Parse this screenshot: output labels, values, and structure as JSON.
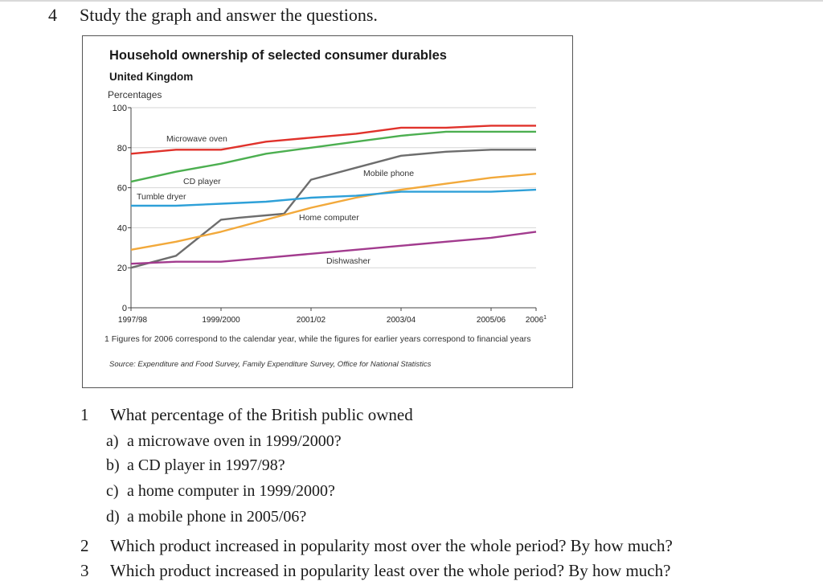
{
  "task": {
    "number": "4",
    "heading": "Study the graph and answer the questions."
  },
  "figure": {
    "title": "Household ownership of selected consumer durables",
    "subtitle": "United Kingdom",
    "unit_label": "Percentages",
    "footnote": "1 Figures for 2006 correspond to the calendar year, while the figures for earlier years correspond to financial years",
    "source": "Source: Expenditure and Food Survey, Family Expenditure Survey, Office for National Statistics"
  },
  "chart_data": {
    "type": "line",
    "title": "Household ownership of selected consumer durables",
    "subtitle": "United Kingdom",
    "ylabel": "Percentages",
    "xlabel": "",
    "ylim": [
      0,
      100
    ],
    "yticks": [
      0,
      20,
      40,
      60,
      80,
      100
    ],
    "xlim": [
      0,
      9
    ],
    "xticks": [
      {
        "x": 0,
        "label": "1997/98"
      },
      {
        "x": 2,
        "label": "1999/2000"
      },
      {
        "x": 4,
        "label": "2001/02"
      },
      {
        "x": 6,
        "label": "2003/04"
      },
      {
        "x": 8,
        "label": "2005/06"
      },
      {
        "x": 9,
        "label": "2006",
        "sup": "1"
      }
    ],
    "grid": true,
    "series": [
      {
        "name": "Microwave oven",
        "color": "#e0322b",
        "x": [
          0,
          1,
          2,
          3,
          4,
          5,
          6,
          7,
          8,
          9
        ],
        "values": [
          77,
          79,
          79,
          83,
          85,
          87,
          90,
          90,
          91,
          91
        ]
      },
      {
        "name": "CD player",
        "color": "#4caf50",
        "x": [
          0,
          1,
          2,
          3,
          4,
          5,
          6,
          7,
          8,
          9
        ],
        "values": [
          63,
          68,
          72,
          77,
          80,
          83,
          86,
          88,
          88,
          88
        ]
      },
      {
        "name": "Mobile phone",
        "color": "#6d6d6d",
        "x": [
          0,
          1,
          2,
          2.4,
          3.4,
          4,
          5,
          6,
          7,
          8,
          9
        ],
        "values": [
          20,
          26,
          44,
          45,
          47,
          64,
          70,
          76,
          78,
          79,
          79
        ]
      },
      {
        "name": "Home computer",
        "color": "#f2a93b",
        "x": [
          0,
          1,
          2,
          3,
          4,
          5,
          6,
          7,
          8,
          9
        ],
        "values": [
          29,
          33,
          38,
          44,
          50,
          55,
          59,
          62,
          65,
          67
        ]
      },
      {
        "name": "Tumble dryer",
        "color": "#2ea0d8",
        "x": [
          0,
          1,
          2,
          3,
          4,
          5,
          6,
          7,
          8,
          9
        ],
        "values": [
          51,
          51,
          52,
          53,
          55,
          56,
          58,
          58,
          58,
          59
        ]
      },
      {
        "name": "Dishwasher",
        "color": "#a23b8e",
        "x": [
          0,
          1,
          2,
          3,
          4,
          5,
          6,
          7,
          8,
          9
        ],
        "values": [
          22,
          23,
          23,
          25,
          27,
          29,
          31,
          33,
          35,
          38
        ]
      }
    ],
    "line_labels": [
      {
        "series": "Microwave oven",
        "text": "Microwave oven"
      },
      {
        "series": "CD player",
        "text": "CD player"
      },
      {
        "series": "Mobile phone",
        "text": "Mobile phone"
      },
      {
        "series": "Home computer",
        "text": "Home computer"
      },
      {
        "series": "Tumble dryer",
        "text": "Tumble dryer"
      },
      {
        "series": "Dishwasher",
        "text": "Dishwasher"
      }
    ]
  },
  "questions": [
    {
      "number": "1",
      "text": "What percentage of the British public owned",
      "subitems": [
        {
          "letter": "a)",
          "text": "a microwave oven in 1999/2000?"
        },
        {
          "letter": "b)",
          "text": "a CD player in 1997/98?"
        },
        {
          "letter": "c)",
          "text": "a home computer in 1999/2000?"
        },
        {
          "letter": "d)",
          "text": "a mobile phone in 2005/06?"
        }
      ]
    },
    {
      "number": "2",
      "text": "Which product increased in popularity most over the whole period? By how much?"
    },
    {
      "number": "3",
      "text": "Which product increased in popularity least over the whole period? By how much?"
    }
  ]
}
